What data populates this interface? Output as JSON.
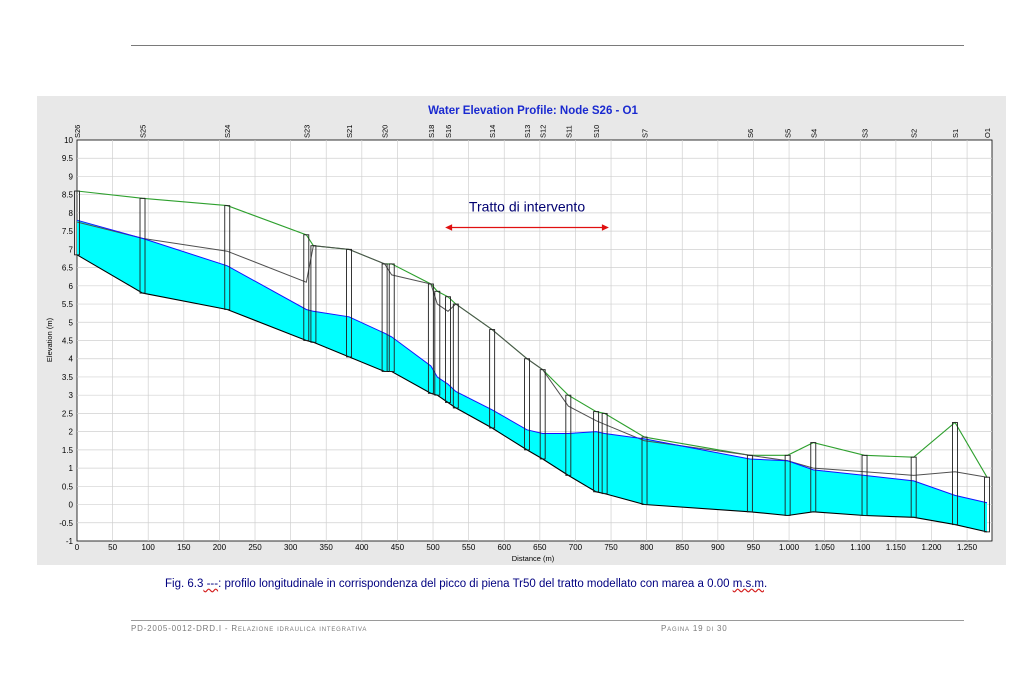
{
  "chart_data": {
    "type": "line",
    "title": "Water Elevation Profile:  Node S26 - O1",
    "xlabel": "Distance (m)",
    "ylabel": "Elevation (m)",
    "xlim": [
      0,
      1285
    ],
    "ylim": [
      -1,
      10
    ],
    "x_ticks": [
      0,
      50,
      100,
      150,
      200,
      250,
      300,
      350,
      400,
      450,
      500,
      550,
      600,
      650,
      700,
      750,
      800,
      850,
      900,
      950,
      1000,
      1050,
      1100,
      1150,
      1200,
      1250
    ],
    "x_tick_labels": [
      "0",
      "50",
      "100",
      "150",
      "200",
      "250",
      "300",
      "350",
      "400",
      "450",
      "500",
      "550",
      "600",
      "650",
      "700",
      "750",
      "800",
      "850",
      "900",
      "950",
      "1.000",
      "1.050",
      "1.100",
      "1.150",
      "1.200",
      "1.250"
    ],
    "y_ticks": [
      -1,
      -0.5,
      0,
      0.5,
      1,
      1.5,
      2,
      2.5,
      3,
      3.5,
      4,
      4.5,
      5,
      5.5,
      6,
      6.5,
      7,
      7.5,
      8,
      8.5,
      9,
      9.5,
      10
    ],
    "y_tick_labels": [
      "-1",
      "-0.5",
      "0",
      "0.5",
      "1",
      "1.5",
      "2",
      "2.5",
      "3",
      "3.5",
      "4",
      "4.5",
      "5",
      "5.5",
      "6",
      "6.5",
      "7",
      "7.5",
      "8",
      "8.5",
      "9",
      "9.5",
      "10"
    ],
    "grid": true,
    "nodes": [
      {
        "name": "S26",
        "x": 0
      },
      {
        "name": "S25",
        "x": 92
      },
      {
        "name": "S24",
        "x": 211
      },
      {
        "name": "S23",
        "x": 322
      },
      {
        "name": "S21",
        "x": 382
      },
      {
        "name": "S20",
        "x": 432
      },
      {
        "name": "S18",
        "x": 497
      },
      {
        "name": "S16",
        "x": 521
      },
      {
        "name": "S14",
        "x": 583
      },
      {
        "name": "S13",
        "x": 632
      },
      {
        "name": "S12",
        "x": 654
      },
      {
        "name": "S11",
        "x": 690
      },
      {
        "name": "S10",
        "x": 729
      },
      {
        "name": "S7",
        "x": 797
      },
      {
        "name": "S6",
        "x": 945
      },
      {
        "name": "S5",
        "x": 998
      },
      {
        "name": "S4",
        "x": 1034
      },
      {
        "name": "S3",
        "x": 1106
      },
      {
        "name": "S2",
        "x": 1175
      },
      {
        "name": "S1",
        "x": 1233
      },
      {
        "name": "O1",
        "x": 1278
      }
    ],
    "profile_x": [
      0,
      92,
      211,
      322,
      332,
      382,
      432,
      442,
      497,
      506,
      521,
      532,
      583,
      632,
      654,
      690,
      729,
      741,
      797,
      945,
      998,
      1034,
      1106,
      1175,
      1233,
      1278
    ],
    "ground_top": [
      8.6,
      8.4,
      8.2,
      7.4,
      7.1,
      7.0,
      6.6,
      6.6,
      6.05,
      5.85,
      5.7,
      5.5,
      4.8,
      4.0,
      3.7,
      3.0,
      2.55,
      2.5,
      1.85,
      1.35,
      1.35,
      1.7,
      1.35,
      1.3,
      2.25,
      0.75
    ],
    "conduit_crown": [
      7.75,
      7.3,
      6.95,
      6.1,
      7.1,
      7.0,
      6.6,
      6.3,
      6.05,
      5.5,
      5.3,
      5.5,
      4.8,
      4.0,
      3.7,
      2.7,
      2.3,
      2.2,
      1.75,
      1.35,
      1.2,
      1.0,
      0.9,
      0.8,
      0.9,
      0.75
    ],
    "water_surface": [
      7.8,
      7.3,
      6.55,
      5.35,
      5.3,
      5.15,
      4.7,
      4.6,
      3.8,
      3.5,
      3.3,
      3.1,
      2.6,
      2.05,
      1.95,
      1.95,
      2.0,
      1.95,
      1.8,
      1.25,
      1.2,
      0.95,
      0.8,
      0.65,
      0.25,
      0.05
    ],
    "invert": [
      6.85,
      5.8,
      5.35,
      4.5,
      4.45,
      4.05,
      3.65,
      3.65,
      3.05,
      3.0,
      2.8,
      2.65,
      2.1,
      1.5,
      1.25,
      0.8,
      0.35,
      0.3,
      0.0,
      -0.2,
      -0.3,
      -0.2,
      -0.3,
      -0.35,
      -0.55,
      -0.75
    ],
    "annotation": {
      "text": "Tratto di intervento",
      "x_from": 517,
      "x_to": 747,
      "y": 7.6
    },
    "colors": {
      "water": "#00ffff",
      "green_line": "#2ea02e",
      "crown_line": "#505050",
      "water_line": "#1414ff",
      "arrow": "#e01010",
      "title": "#1a2ad0",
      "annotation_text": "#000070"
    }
  },
  "caption": {
    "prefix": "Fig. ",
    "fig_num": "6.3",
    "dash": " ---",
    "body": ": profilo longitudinale in corrispondenza del picco di piena Tr50 del tratto modellato con marea a 0.00 ",
    "unit": "m.s.m",
    "end": "."
  },
  "footer": {
    "doc_code": "PD-2005-0012-DRD.I",
    "doc_title": " - Relazione idraulica integrativa",
    "page": "Pagina 19 di 30"
  }
}
